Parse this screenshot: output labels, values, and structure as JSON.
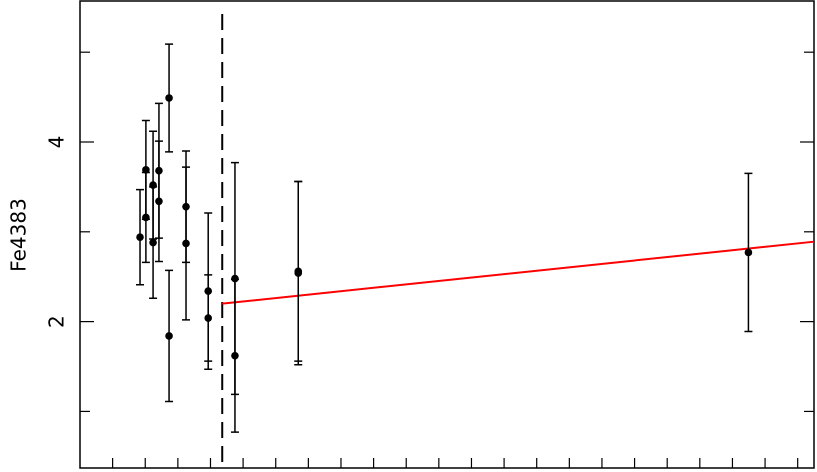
{
  "chart_data": {
    "type": "scatter",
    "y_label": "Fe4383",
    "xlim": [
      0,
      22.5
    ],
    "ylim": [
      0.37,
      5.57
    ],
    "xticks": [
      1,
      2,
      3,
      4,
      5,
      6,
      7,
      8,
      9,
      10,
      11,
      12,
      13,
      14,
      15,
      16,
      17,
      18,
      19,
      20,
      21,
      22
    ],
    "yticks": [
      2,
      4
    ],
    "yminor_ticks": [
      1,
      3,
      5
    ],
    "points": {
      "color": "#000000",
      "x": [
        1.84,
        2.02,
        2.02,
        2.24,
        2.24,
        2.42,
        2.42,
        2.73,
        2.73,
        3.25,
        3.25,
        3.93,
        3.93,
        4.75,
        4.75,
        6.69,
        6.69,
        20.49
      ],
      "values": [
        2.94,
        3.16,
        3.69,
        3.52,
        2.88,
        3.68,
        3.34,
        4.49,
        1.84,
        3.28,
        2.87,
        2.34,
        2.04,
        2.48,
        1.62,
        2.54,
        2.56,
        2.77
      ],
      "errors": [
        0.53,
        0.5,
        0.55,
        0.6,
        0.62,
        0.75,
        0.67,
        0.6,
        0.73,
        0.62,
        0.85,
        0.87,
        0.48,
        1.29,
        0.85,
        1.02,
        1.0,
        0.88
      ]
    },
    "fit": {
      "color": "#ff0000",
      "x": [
        4.36,
        22.5
      ],
      "values": [
        2.2,
        2.89
      ]
    },
    "divider_x": 4.36
  }
}
